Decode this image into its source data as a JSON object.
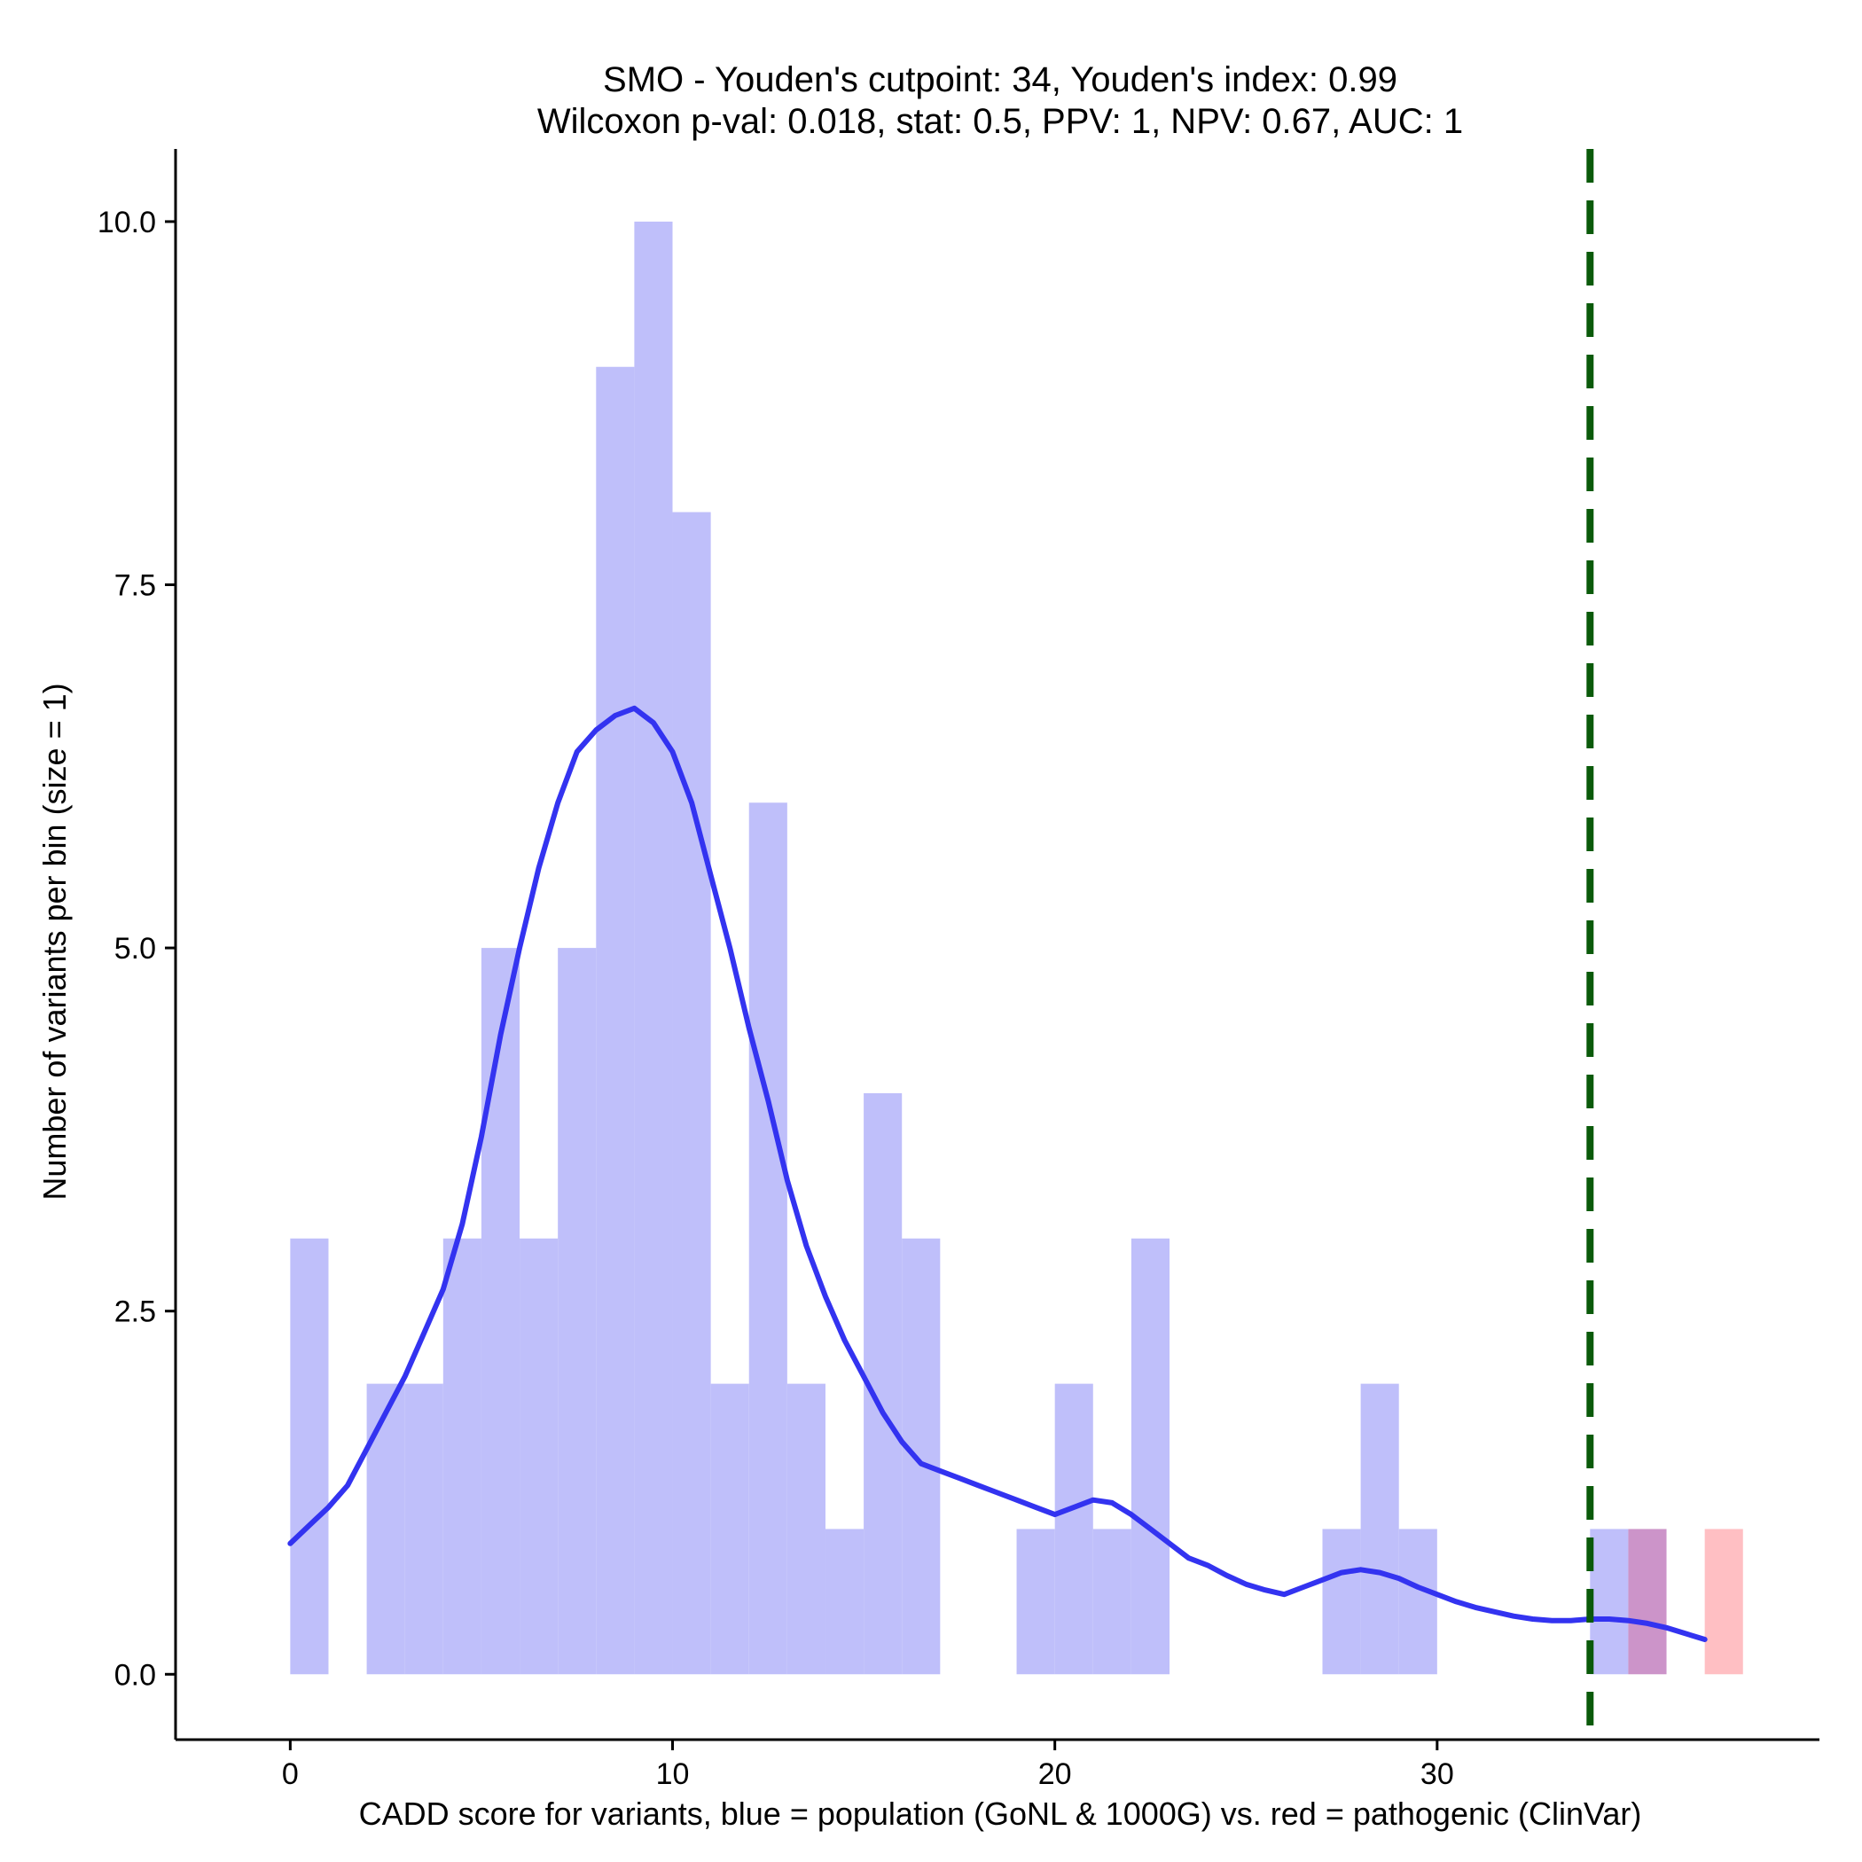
{
  "chart_data": {
    "type": "histogram",
    "title_lines": [
      "SMO - Youden's cutpoint: 34, Youden's index: 0.99",
      "Wilcoxon p-val: 0.018, stat: 0.5, PPV: 1, NPV: 0.67, AUC: 1"
    ],
    "xlabel": "CADD score for variants, blue = population (GoNL & 1000G) vs. red = pathogenic (ClinVar)",
    "ylabel": "Number of variants per bin (size = 1)",
    "xlim": [
      -3,
      40
    ],
    "ylim": [
      -0.45,
      10.5
    ],
    "x_ticks": [
      0,
      10,
      20,
      30
    ],
    "x_tick_labels": [
      "0",
      "10",
      "20",
      "30"
    ],
    "y_ticks": [
      0,
      2.5,
      5,
      7.5,
      10
    ],
    "y_tick_labels": [
      "0.0",
      "2.5",
      "5.0",
      "7.5",
      "10.0"
    ],
    "bin_width": 1,
    "series": [
      {
        "name": "population (GoNL & 1000G)",
        "color": "#bfbffa",
        "bins": [
          [
            0,
            3
          ],
          [
            2,
            2
          ],
          [
            3,
            2
          ],
          [
            4,
            3
          ],
          [
            5,
            5
          ],
          [
            6,
            3
          ],
          [
            7,
            5
          ],
          [
            8,
            9
          ],
          [
            9,
            10
          ],
          [
            10,
            8
          ],
          [
            11,
            2
          ],
          [
            12,
            6
          ],
          [
            13,
            2
          ],
          [
            14,
            1
          ],
          [
            15,
            4
          ],
          [
            16,
            3
          ],
          [
            19,
            1
          ],
          [
            20,
            2
          ],
          [
            21,
            1
          ],
          [
            22,
            3
          ],
          [
            27,
            1
          ],
          [
            28,
            2
          ],
          [
            29,
            1
          ],
          [
            34,
            1
          ],
          [
            35,
            1
          ]
        ]
      },
      {
        "name": "pathogenic (ClinVar)",
        "color": "#ffbfc3",
        "bins": [
          [
            35,
            1
          ],
          [
            37,
            1
          ]
        ]
      }
    ],
    "overlap_color": "#cc94c9",
    "density_line": {
      "name": "population density (scaled)",
      "color": "#3333f0",
      "points": [
        [
          0,
          0.9
        ],
        [
          0.6,
          1.05
        ],
        [
          1,
          1.15
        ],
        [
          1.5,
          1.3
        ],
        [
          2,
          1.55
        ],
        [
          2.5,
          1.8
        ],
        [
          3,
          2.05
        ],
        [
          3.5,
          2.35
        ],
        [
          4,
          2.65
        ],
        [
          4.5,
          3.1
        ],
        [
          5,
          3.7
        ],
        [
          5.5,
          4.4
        ],
        [
          6,
          5.0
        ],
        [
          6.5,
          5.55
        ],
        [
          7,
          6.0
        ],
        [
          7.5,
          6.35
        ],
        [
          8,
          6.5
        ],
        [
          8.5,
          6.6
        ],
        [
          9,
          6.65
        ],
        [
          9.5,
          6.55
        ],
        [
          10,
          6.35
        ],
        [
          10.5,
          6.0
        ],
        [
          11,
          5.5
        ],
        [
          11.5,
          5.0
        ],
        [
          12,
          4.45
        ],
        [
          12.5,
          3.95
        ],
        [
          13,
          3.4
        ],
        [
          13.5,
          2.95
        ],
        [
          14,
          2.6
        ],
        [
          14.5,
          2.3
        ],
        [
          15,
          2.05
        ],
        [
          15.5,
          1.8
        ],
        [
          16,
          1.6
        ],
        [
          16.5,
          1.45
        ],
        [
          17,
          1.4
        ],
        [
          17.5,
          1.35
        ],
        [
          18,
          1.3
        ],
        [
          18.5,
          1.25
        ],
        [
          19,
          1.2
        ],
        [
          19.5,
          1.15
        ],
        [
          20,
          1.1
        ],
        [
          20.5,
          1.15
        ],
        [
          21,
          1.2
        ],
        [
          21.5,
          1.18
        ],
        [
          22,
          1.1
        ],
        [
          22.5,
          1.0
        ],
        [
          23,
          0.9
        ],
        [
          23.5,
          0.8
        ],
        [
          24,
          0.75
        ],
        [
          24.5,
          0.68
        ],
        [
          25,
          0.62
        ],
        [
          25.5,
          0.58
        ],
        [
          26,
          0.55
        ],
        [
          26.5,
          0.6
        ],
        [
          27,
          0.65
        ],
        [
          27.5,
          0.7
        ],
        [
          28,
          0.72
        ],
        [
          28.5,
          0.7
        ],
        [
          29,
          0.66
        ],
        [
          29.5,
          0.6
        ],
        [
          30,
          0.55
        ],
        [
          30.5,
          0.5
        ],
        [
          31,
          0.46
        ],
        [
          31.5,
          0.43
        ],
        [
          32,
          0.4
        ],
        [
          32.5,
          0.38
        ],
        [
          33,
          0.37
        ],
        [
          33.5,
          0.37
        ],
        [
          34,
          0.38
        ],
        [
          34.5,
          0.38
        ],
        [
          35,
          0.37
        ],
        [
          35.5,
          0.35
        ],
        [
          36,
          0.32
        ],
        [
          36.5,
          0.28
        ],
        [
          37,
          0.24
        ]
      ]
    },
    "cutpoint": {
      "x": 34,
      "color": "#0a5a0a",
      "style": "dashed"
    }
  }
}
